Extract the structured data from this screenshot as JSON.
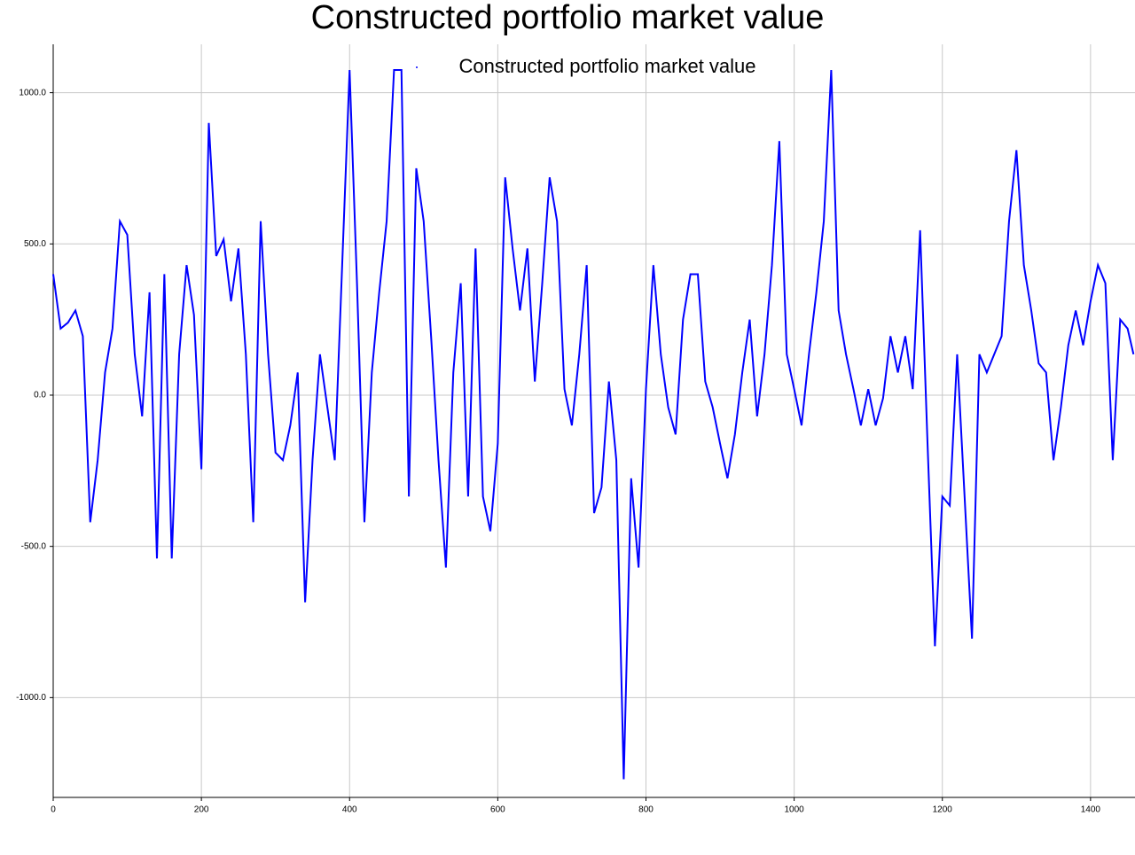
{
  "chart_data": {
    "type": "line",
    "title": "Constructed portfolio market value",
    "x": [
      0,
      10,
      20,
      30,
      40,
      50,
      60,
      70,
      80,
      90,
      100,
      110,
      120,
      130,
      140,
      150,
      160,
      170,
      180,
      190,
      200,
      210,
      220,
      230,
      240,
      250,
      260,
      270,
      280,
      290,
      300,
      310,
      320,
      330,
      340,
      350,
      360,
      370,
      380,
      390,
      400,
      410,
      420,
      430,
      440,
      450,
      460,
      470,
      480,
      490,
      500,
      510,
      520,
      530,
      540,
      550,
      560,
      570,
      580,
      590,
      600,
      610,
      620,
      630,
      640,
      650,
      660,
      670,
      680,
      690,
      700,
      710,
      720,
      730,
      740,
      750,
      760,
      770,
      780,
      790,
      800,
      810,
      820,
      830,
      840,
      850,
      860,
      870,
      880,
      890,
      900,
      910,
      920,
      930,
      940,
      950,
      960,
      970,
      980,
      990,
      1000,
      1010,
      1020,
      1030,
      1040,
      1050,
      1060,
      1070,
      1080,
      1090,
      1100,
      1110,
      1120,
      1130,
      1140,
      1150,
      1160,
      1170,
      1180,
      1190,
      1200,
      1210,
      1220,
      1230,
      1240,
      1250,
      1260,
      1270,
      1280,
      1290,
      1300,
      1310,
      1320,
      1330,
      1340,
      1350,
      1360,
      1370,
      1380,
      1390,
      1400,
      1410,
      1420,
      1430,
      1440,
      1450,
      1458
    ],
    "series": [
      {
        "name": "Constructed portfolio market value",
        "color": "#0000ff",
        "values": [
          400,
          220,
          240,
          280,
          195,
          -420,
          -215,
          75,
          220,
          575,
          530,
          135,
          -70,
          340,
          -540,
          400,
          -540,
          135,
          430,
          265,
          -245,
          900,
          460,
          515,
          310,
          485,
          135,
          -420,
          575,
          135,
          -190,
          -215,
          -100,
          75,
          -685,
          -215,
          135,
          -40,
          -215,
          430,
          1075,
          370,
          -420,
          75,
          340,
          575,
          1075,
          1075,
          -335,
          750,
          575,
          195,
          -215,
          -570,
          75,
          370,
          -335,
          485,
          -335,
          -450,
          -160,
          720,
          485,
          280,
          485,
          45,
          370,
          720,
          575,
          20,
          -100,
          135,
          430,
          -390,
          -305,
          45,
          -215,
          -1270,
          -275,
          -570,
          20,
          430,
          135,
          -40,
          -130,
          250,
          400,
          400,
          45,
          -40,
          -160,
          -275,
          -130,
          75,
          250,
          -70,
          135,
          430,
          840,
          135,
          20,
          -100,
          135,
          340,
          575,
          1075,
          280,
          135,
          20,
          -100,
          20,
          -100,
          -10,
          195,
          75,
          195,
          20,
          545,
          -160,
          -830,
          -335,
          -365,
          135,
          -335,
          -805,
          135,
          75,
          135,
          195,
          575,
          810,
          430,
          280,
          105,
          75,
          -215,
          -40,
          165,
          280,
          165,
          310,
          430,
          370,
          -215,
          250,
          220,
          135
        ]
      }
    ],
    "xlim": [
      0,
      1460
    ],
    "ylim": [
      -1330,
      1160
    ],
    "xticks": [
      0,
      200,
      400,
      600,
      800,
      1000,
      1200,
      1400
    ],
    "yticks": [
      {
        "value": -1000,
        "label": "-1000.0"
      },
      {
        "value": -500,
        "label": "-500.0"
      },
      {
        "value": 0,
        "label": "0.0"
      },
      {
        "value": 500,
        "label": "500.0"
      },
      {
        "value": 1000,
        "label": "1000.0"
      }
    ],
    "grid": true,
    "legend": "top-center"
  }
}
